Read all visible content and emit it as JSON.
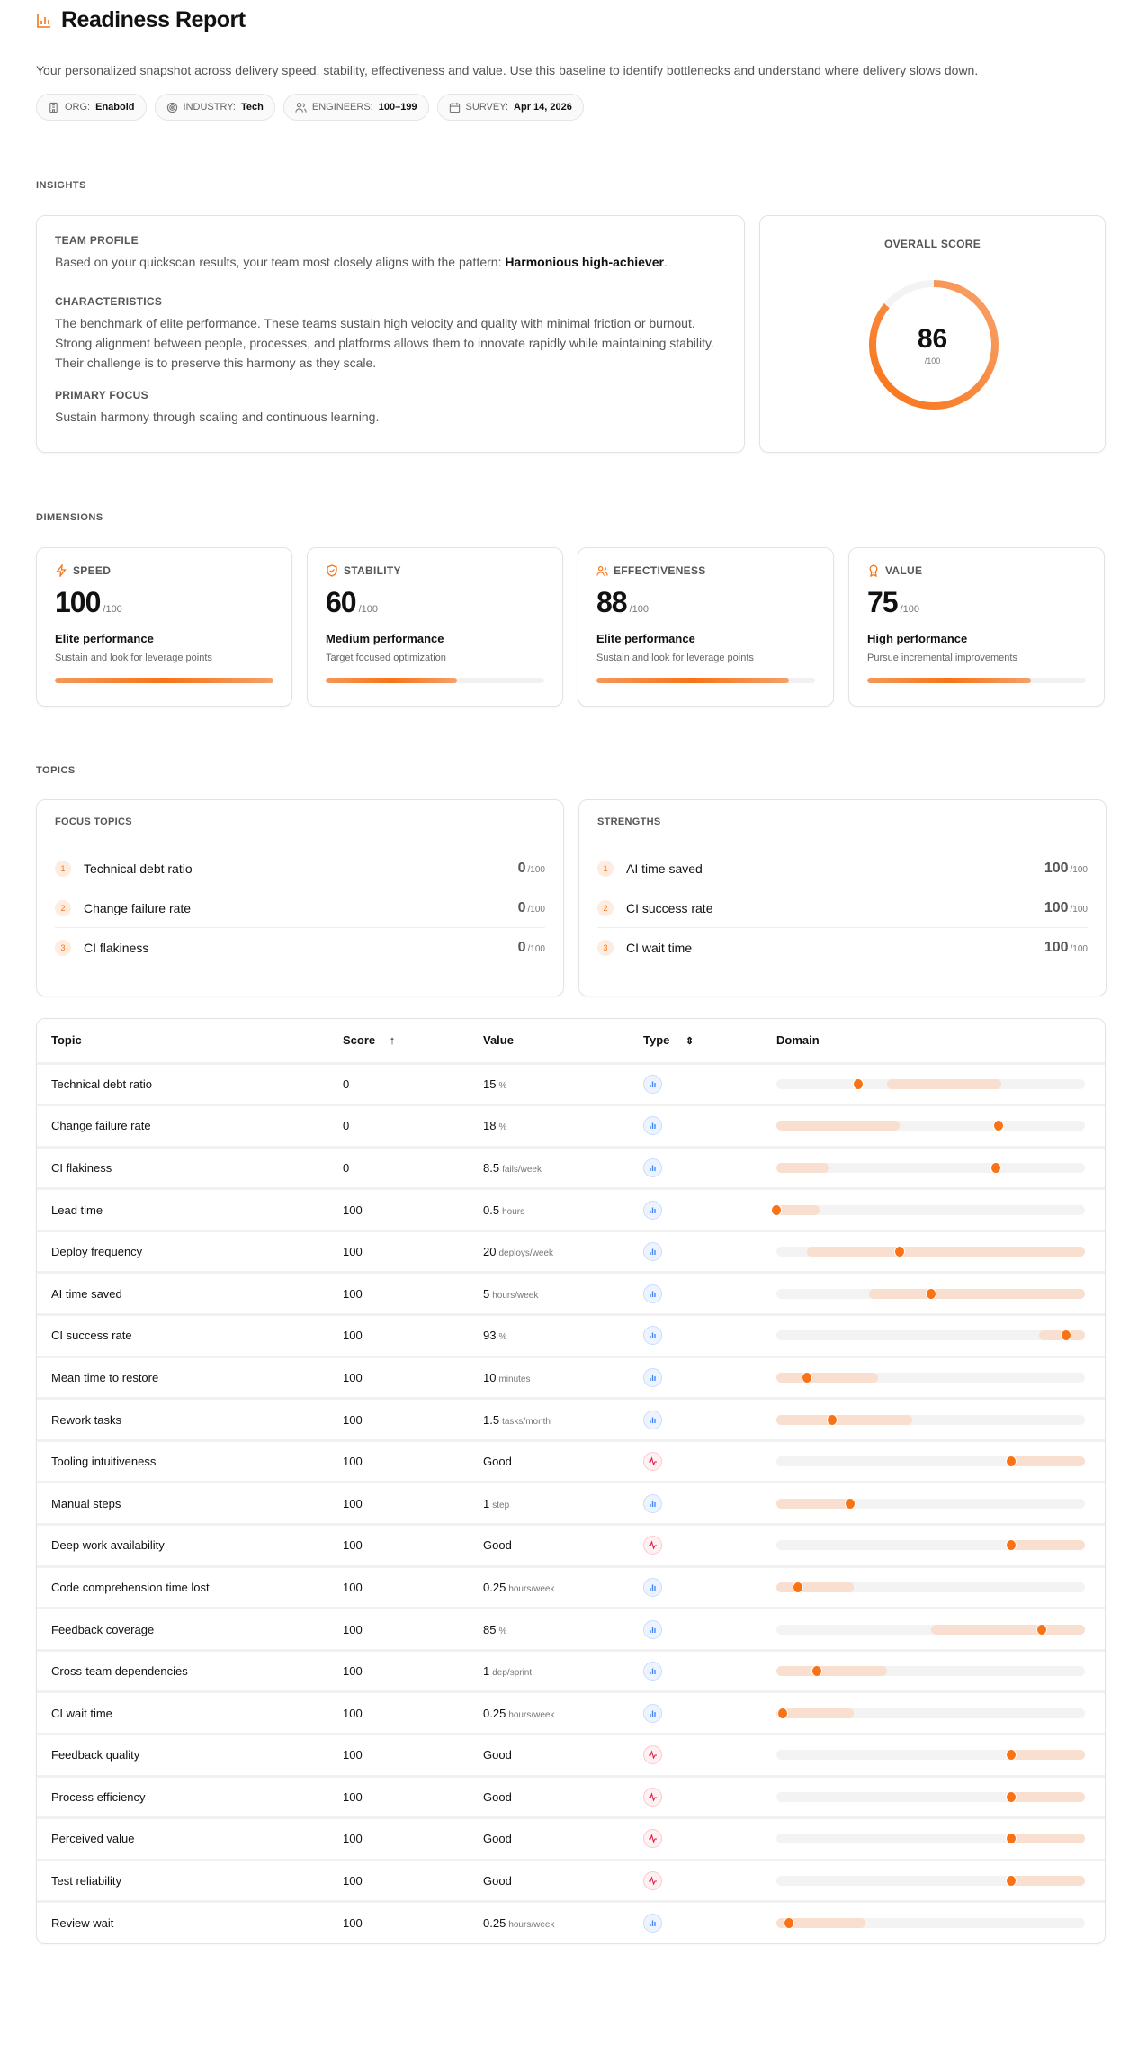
{
  "header": {
    "title": "Readiness Report",
    "description": "Your personalized snapshot across delivery speed, stability, effectiveness and value. Use this baseline to identify bottlenecks and understand where delivery slows down.",
    "chips": [
      {
        "icon": "building-icon",
        "label": "ORG:",
        "value": "Enabold"
      },
      {
        "icon": "target-icon",
        "label": "INDUSTRY:",
        "value": "Tech"
      },
      {
        "icon": "users-icon",
        "label": "ENGINEERS:",
        "value": "100–199"
      },
      {
        "icon": "calendar-icon",
        "label": "SURVEY:",
        "value": "Apr 14, 2026"
      }
    ]
  },
  "insights": {
    "section": "INSIGHTS",
    "team_profile_label": "TEAM PROFILE",
    "team_profile_text": "Based on your quickscan results, your team most closely aligns with the pattern: ",
    "pattern": "Harmonious high-achiever",
    "characteristics_label": "CHARACTERISTICS",
    "characteristics_text": "The benchmark of elite performance. These teams sustain high velocity and quality with minimal friction or burnout. Strong alignment between people, processes, and platforms allows them to innovate rapidly while maintaining stability. Their challenge is to preserve this harmony as they scale.",
    "primary_focus_label": "PRIMARY FOCUS",
    "primary_focus_text": "Sustain harmony through scaling and continuous learning.",
    "overall_label": "OVERALL SCORE",
    "overall_score": "86",
    "overall_max": "/100",
    "accent": "#f97316"
  },
  "dimensions": {
    "section": "DIMENSIONS",
    "items": [
      {
        "icon": "lightning-icon",
        "name": "SPEED",
        "score": "100",
        "max": "/100",
        "level": "Elite performance",
        "advice": "Sustain and look for leverage points",
        "fill": 100
      },
      {
        "icon": "shield-check-icon",
        "name": "STABILITY",
        "score": "60",
        "max": "/100",
        "level": "Medium performance",
        "advice": "Target focused optimization",
        "fill": 60
      },
      {
        "icon": "users-icon",
        "name": "EFFECTIVENESS",
        "score": "88",
        "max": "/100",
        "level": "Elite performance",
        "advice": "Sustain and look for leverage points",
        "fill": 88
      },
      {
        "icon": "award-icon",
        "name": "VALUE",
        "score": "75",
        "max": "/100",
        "level": "High performance",
        "advice": "Pursue incremental improvements",
        "fill": 75
      }
    ]
  },
  "topics": {
    "section": "TOPICS",
    "focus": {
      "title": "FOCUS TOPICS",
      "items": [
        {
          "rank": "1",
          "name": "Technical debt ratio",
          "score": "0",
          "max": "/100"
        },
        {
          "rank": "2",
          "name": "Change failure rate",
          "score": "0",
          "max": "/100"
        },
        {
          "rank": "3",
          "name": "CI flakiness",
          "score": "0",
          "max": "/100"
        }
      ]
    },
    "strengths": {
      "title": "STRENGTHS",
      "items": [
        {
          "rank": "1",
          "name": "AI time saved",
          "score": "100",
          "max": "/100"
        },
        {
          "rank": "2",
          "name": "CI success rate",
          "score": "100",
          "max": "/100"
        },
        {
          "rank": "3",
          "name": "CI wait time",
          "score": "100",
          "max": "/100"
        }
      ]
    }
  },
  "table": {
    "headers": {
      "topic": "Topic",
      "score": "Score",
      "value": "Value",
      "type": "Type",
      "domain": "Domain"
    },
    "sort": "score-ascending",
    "rows": [
      {
        "topic": "Technical debt ratio",
        "score": "0",
        "value": "15",
        "unit": "%",
        "type": "quantitative",
        "range": [
          0.36,
          0.73
        ],
        "marker": 0.265
      },
      {
        "topic": "Change failure rate",
        "score": "0",
        "value": "18",
        "unit": "%",
        "type": "quantitative",
        "range": [
          0,
          0.4
        ],
        "marker": 0.72
      },
      {
        "topic": "CI flakiness",
        "score": "0",
        "value": "8.5",
        "unit": "fails/week",
        "type": "quantitative",
        "range": [
          0,
          0.17
        ],
        "marker": 0.71
      },
      {
        "topic": "Lead time",
        "score": "100",
        "value": "0.5",
        "unit": "hours",
        "type": "quantitative",
        "range": [
          0,
          0.14
        ],
        "marker": 0
      },
      {
        "topic": "Deploy frequency",
        "score": "100",
        "value": "20",
        "unit": "deploys/week",
        "type": "quantitative",
        "range": [
          0.1,
          1
        ],
        "marker": 0.4
      },
      {
        "topic": "AI time saved",
        "score": "100",
        "value": "5",
        "unit": "hours/week",
        "type": "quantitative",
        "range": [
          0.3,
          1
        ],
        "marker": 0.5
      },
      {
        "topic": "CI success rate",
        "score": "100",
        "value": "93",
        "unit": "%",
        "type": "quantitative",
        "range": [
          0.85,
          1
        ],
        "marker": 0.94
      },
      {
        "topic": "Mean time to restore",
        "score": "100",
        "value": "10",
        "unit": "minutes",
        "type": "quantitative",
        "range": [
          0,
          0.33
        ],
        "marker": 0.1
      },
      {
        "topic": "Rework tasks",
        "score": "100",
        "value": "1.5",
        "unit": "tasks/month",
        "type": "quantitative",
        "range": [
          0,
          0.44
        ],
        "marker": 0.18
      },
      {
        "topic": "Tooling intuitiveness",
        "score": "100",
        "value": "Good",
        "unit": "",
        "type": "sentiment",
        "range": [
          0.76,
          1
        ],
        "marker": 0.76
      },
      {
        "topic": "Manual steps",
        "score": "100",
        "value": "1",
        "unit": "step",
        "type": "quantitative",
        "range": [
          0,
          0.24
        ],
        "marker": 0.24
      },
      {
        "topic": "Deep work availability",
        "score": "100",
        "value": "Good",
        "unit": "",
        "type": "sentiment",
        "range": [
          0.76,
          1
        ],
        "marker": 0.76
      },
      {
        "topic": "Code comprehension time lost",
        "score": "100",
        "value": "0.25",
        "unit": "hours/week",
        "type": "quantitative",
        "range": [
          0,
          0.25
        ],
        "marker": 0.07
      },
      {
        "topic": "Feedback coverage",
        "score": "100",
        "value": "85",
        "unit": "%",
        "type": "quantitative",
        "range": [
          0.5,
          1
        ],
        "marker": 0.86
      },
      {
        "topic": "Cross-team dependencies",
        "score": "100",
        "value": "1",
        "unit": "dep/sprint",
        "type": "quantitative",
        "range": [
          0,
          0.36
        ],
        "marker": 0.13
      },
      {
        "topic": "CI wait time",
        "score": "100",
        "value": "0.25",
        "unit": "hours/week",
        "type": "quantitative",
        "range": [
          0,
          0.25
        ],
        "marker": 0.02
      },
      {
        "topic": "Feedback quality",
        "score": "100",
        "value": "Good",
        "unit": "",
        "type": "sentiment",
        "range": [
          0.76,
          1
        ],
        "marker": 0.76
      },
      {
        "topic": "Process efficiency",
        "score": "100",
        "value": "Good",
        "unit": "",
        "type": "sentiment",
        "range": [
          0.76,
          1
        ],
        "marker": 0.76
      },
      {
        "topic": "Perceived value",
        "score": "100",
        "value": "Good",
        "unit": "",
        "type": "sentiment",
        "range": [
          0.76,
          1
        ],
        "marker": 0.76
      },
      {
        "topic": "Test reliability",
        "score": "100",
        "value": "Good",
        "unit": "",
        "type": "sentiment",
        "range": [
          0.76,
          1
        ],
        "marker": 0.76
      },
      {
        "topic": "Review wait",
        "score": "100",
        "value": "0.25",
        "unit": "hours/week",
        "type": "quantitative",
        "range": [
          0,
          0.29
        ],
        "marker": 0.04
      }
    ]
  }
}
